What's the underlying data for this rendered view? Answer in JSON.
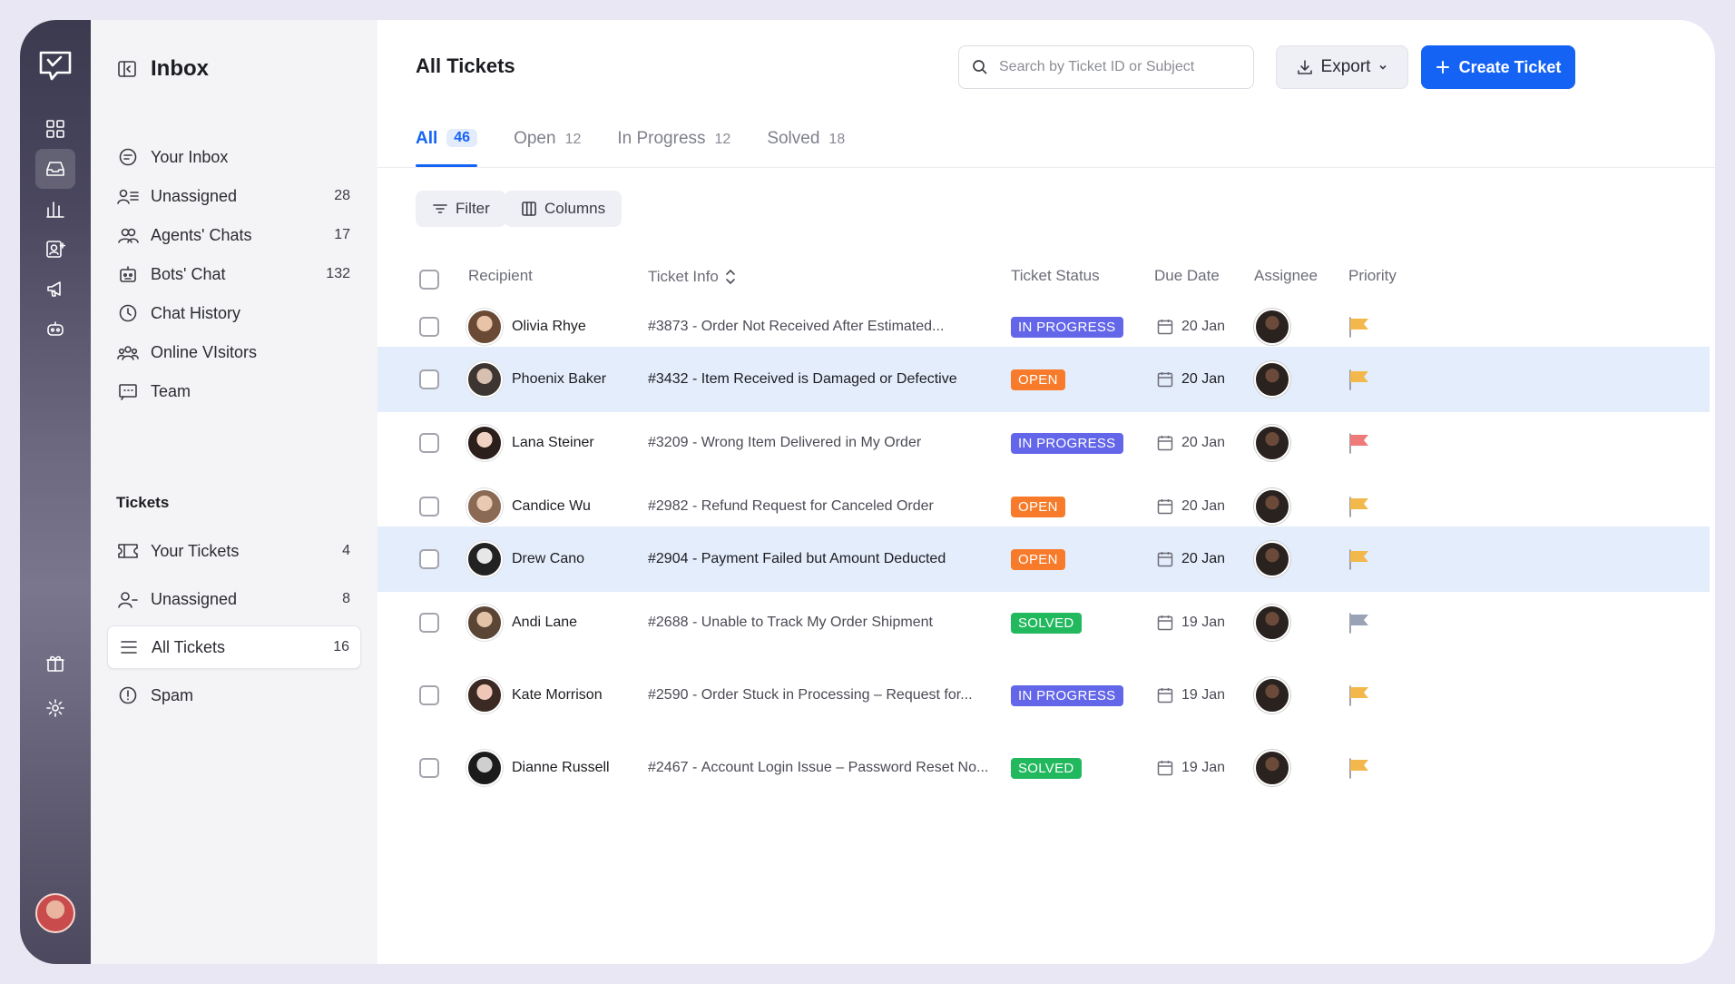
{
  "sidebar": {
    "title": "Inbox",
    "items": [
      {
        "label": "Your Inbox",
        "count": "",
        "icon": "chat-bubble-icon"
      },
      {
        "label": "Unassigned",
        "count": "28",
        "icon": "user-list-icon"
      },
      {
        "label": "Agents' Chats",
        "count": "17",
        "icon": "users-icon"
      },
      {
        "label": "Bots' Chat",
        "count": "132",
        "icon": "bot-icon"
      },
      {
        "label": "Chat History",
        "count": "",
        "icon": "clock-icon"
      },
      {
        "label": "Online VIsitors",
        "count": "",
        "icon": "visitors-icon"
      },
      {
        "label": "Team",
        "count": "",
        "icon": "team-icon"
      }
    ],
    "tickets_section": "Tickets",
    "ticket_items": [
      {
        "label": "Your Tickets",
        "count": "4",
        "icon": "ticket-icon"
      },
      {
        "label": "Unassigned",
        "count": "8",
        "icon": "user-icon"
      },
      {
        "label": "All Tickets",
        "count": "16",
        "icon": "list-icon",
        "active": true
      },
      {
        "label": "Spam",
        "count": "",
        "icon": "alert-icon"
      }
    ]
  },
  "header": {
    "title": "All Tickets",
    "search_placeholder": "Search by Ticket ID or Subject",
    "export_label": "Export",
    "create_label": "Create Ticket"
  },
  "tabs": [
    {
      "label": "All",
      "count": "46",
      "active": true
    },
    {
      "label": "Open",
      "count": "12"
    },
    {
      "label": "In Progress",
      "count": "12"
    },
    {
      "label": "Solved",
      "count": "18"
    }
  ],
  "toolbar": {
    "filter_label": "Filter",
    "columns_label": "Columns"
  },
  "table": {
    "columns": {
      "recipient": "Recipient",
      "ticket_info": "Ticket Info",
      "status": "Ticket Status",
      "due_date": "Due Date",
      "assignee": "Assignee",
      "priority": "Priority"
    },
    "rows": [
      {
        "recipient": "Olivia Rhye",
        "ticket_id": "#3873",
        "subject": "Order Not Received After Estimated...",
        "status": "IN PROGRESS",
        "due": "20 Jan",
        "priority_color": "#f2b84b",
        "highlight": false
      },
      {
        "recipient": "Phoenix Baker",
        "ticket_id": "#3432",
        "subject": "Item Received is Damaged or Defective",
        "status": "OPEN",
        "due": "20 Jan",
        "priority_color": "#f2b84b",
        "highlight": true
      },
      {
        "recipient": "Lana Steiner",
        "ticket_id": "#3209",
        "subject": "Wrong Item Delivered in My Order",
        "status": "IN PROGRESS",
        "due": "20 Jan",
        "priority_color": "#f07a7a",
        "highlight": false
      },
      {
        "recipient": "Candice Wu",
        "ticket_id": "#2982",
        "subject": "Refund Request for Canceled Order",
        "status": "OPEN",
        "due": "20 Jan",
        "priority_color": "#f2b84b",
        "highlight": false
      },
      {
        "recipient": "Drew Cano",
        "ticket_id": "#2904",
        "subject": "Payment Failed but Amount Deducted",
        "status": "OPEN",
        "due": "20 Jan",
        "priority_color": "#f2b84b",
        "highlight": true
      },
      {
        "recipient": "Andi Lane",
        "ticket_id": "#2688",
        "subject": "Unable to Track My Order Shipment",
        "status": "SOLVED",
        "due": "19 Jan",
        "priority_color": "#9aa3b5",
        "highlight": false
      },
      {
        "recipient": "Kate Morrison",
        "ticket_id": "#2590",
        "subject": "Order Stuck in Processing – Request for...",
        "status": "IN PROGRESS",
        "due": "19 Jan",
        "priority_color": "#f2b84b",
        "highlight": false
      },
      {
        "recipient": "Dianne Russell",
        "ticket_id": "#2467",
        "subject": "Account Login Issue – Password Reset No...",
        "status": "SOLVED",
        "due": "19 Jan",
        "priority_color": "#f2b84b",
        "highlight": false
      }
    ]
  }
}
